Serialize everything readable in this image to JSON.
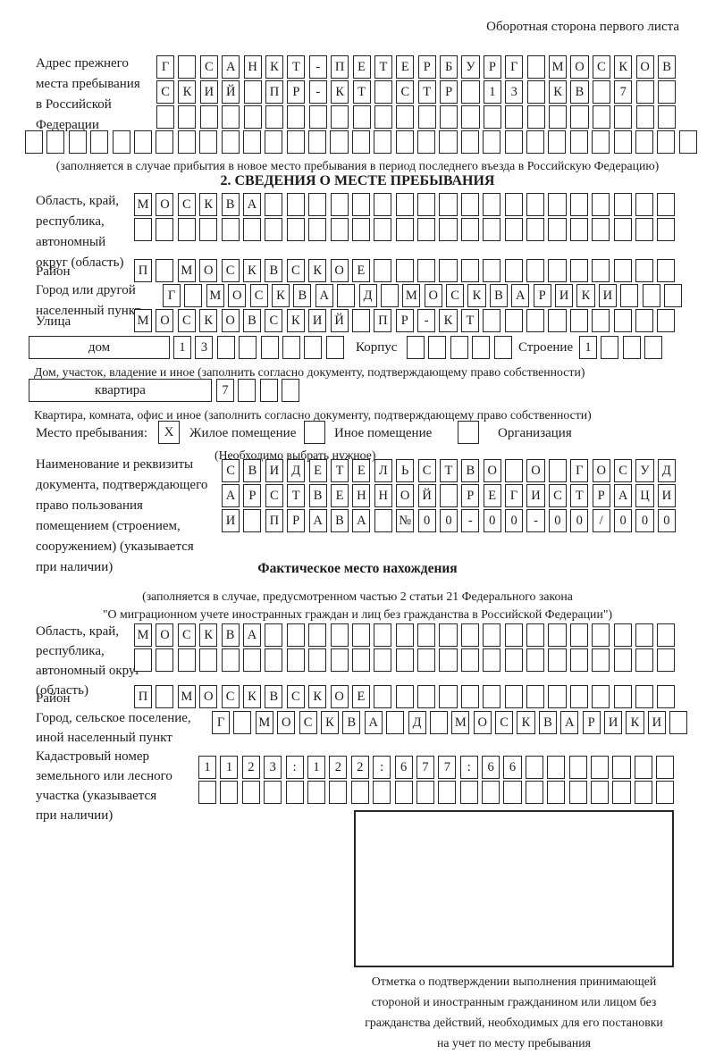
{
  "header_note": "Оборотная сторона первого листа",
  "prev_address": {
    "label": "Адрес прежнего\nместа пребывания\nв Российской\nФедерации",
    "row1": {
      "text": "Г САНКТ-ПЕТЕРБУРГ МОСКОВ",
      "count": 24
    },
    "row2": {
      "text": "СКИЙ ПР-КТ СТР 13 КВ 7",
      "count": 24
    },
    "row3": {
      "text": "",
      "count": 24
    },
    "row4": {
      "text": "",
      "count": 31
    },
    "caption": "(заполняется в случае прибытия в новое место пребывания в период последнего въезда в Российскую Федерацию)"
  },
  "section2": {
    "title": "2. СВЕДЕНИЯ О МЕСТЕ ПРЕБЫВАНИЯ",
    "oblast_label": "Область, край,\nреспублика,\nавтономный\nокруг (область)",
    "oblast_r1": {
      "text": "МОСКВА",
      "count": 25
    },
    "oblast_r2": {
      "text": "",
      "count": 25
    },
    "rayon_label": "Район",
    "rayon_row": {
      "text": "П МОСКВСКОЕ",
      "count": 25
    },
    "gorod_label": "Город или другой\nнаселенный пункт",
    "gorod_row": {
      "text": "Г МОСКВА Д МОСКВАРИКИ",
      "count": 24
    },
    "ulitsa_label": "Улица",
    "ulitsa_row": {
      "text": "МОСКОВСКИЙ ПР-КТ",
      "count": 25
    },
    "dom_field_label": "дом",
    "dom_row": {
      "text": "13",
      "count": 8
    },
    "korpus_label": "Корпус",
    "korpus_row": {
      "text": "",
      "count": 5
    },
    "stroenie_label": "Строение",
    "stroenie_row": {
      "text": "1",
      "count": 4
    },
    "dom_caption": "Дом, участок, владение и иное (заполнить согласно документу, подтверждающему право собственности)",
    "kvartira_field_label": "квартира",
    "kvartira_row": {
      "text": "7",
      "count": 4
    },
    "kvartira_caption": "Квартира, комната, офис и иное (заполнить согласно документу, подтверждающему право собственности)",
    "mesto_label": "Место пребывания:",
    "zhiloe_value": "X",
    "zhiloe_label": "Жилое помещение",
    "inoe_value": "",
    "inoe_label": "Иное помещение",
    "org_value": "",
    "org_label": "Организация",
    "vybrat_note": "(Необходимо выбрать нужное)",
    "doc_label": "Наименование и реквизиты\nдокумента, подтверждающего\nправо пользования\nпомещением (строением,\nсооружением) (указывается\nпри наличии)",
    "doc_r1": {
      "text": "СВИДЕТЕЛЬСТВО О ГОСУД",
      "count": 21
    },
    "doc_r2": {
      "text": "АРСТВЕННОЙ РЕГИСТРАЦИ",
      "count": 21
    },
    "doc_r3": {
      "text": "И ПРАВА №00-00-00/000",
      "count": 21
    }
  },
  "faktich": {
    "title": "Фактическое место нахождения",
    "note1": "(заполняется в случае, предусмотренном частью 2 статьи 21 Федерального закона",
    "note2": "\"О миграционном учете иностранных граждан и лиц без гражданства в Российской Федерации\")",
    "oblast_label": "Область, край,\nреспублика,\nавтономный округ\n(область)",
    "oblast_r1": {
      "text": "МОСКВА",
      "count": 25
    },
    "oblast_r2": {
      "text": "",
      "count": 25
    },
    "rayon_label": "Район",
    "rayon_row": {
      "text": "П МОСКВСКОЕ",
      "count": 25
    },
    "gorod_label": "Город, сельское поселение,\nиной населенный пункт",
    "gorod_row": {
      "text": "Г МОСКВА Д МОСКВАРИКИ",
      "count": 22
    },
    "kadastr_label": "Кадастровый номер\nземельного или лесного\nучастка (указывается\nпри наличии)",
    "kadastr_r1": {
      "text": "1123:122:677:66",
      "count": 22
    },
    "kadastr_r2": {
      "text": "",
      "count": 22
    }
  },
  "stamp": {
    "caption": "Отметка о подтверждении выполнения принимающей\nстороной и иностранным гражданином или лицом без\nгражданства действий, необходимых для его постановки\nна учет по месту пребывания"
  }
}
